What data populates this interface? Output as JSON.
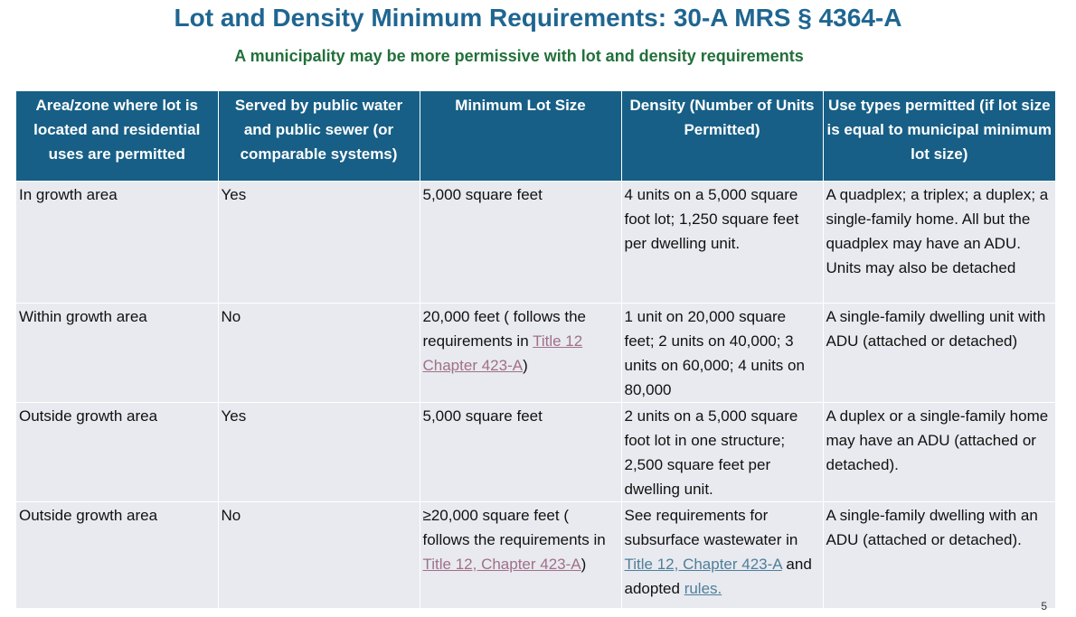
{
  "title": "Lot and Density Minimum Requirements: 30-A MRS § 4364-A",
  "subtitle": "A municipality may be more permissive with lot and density requirements",
  "table": {
    "headers": [
      "Area/zone where lot is located and residential uses are permitted",
      "Served by public water and public sewer (or comparable systems)",
      "Minimum Lot Size",
      "Density (Number of Units Permitted)",
      "Use types permitted (if lot size is equal to municipal minimum lot size)"
    ],
    "rows": [
      {
        "area": "In growth area",
        "served": "Yes",
        "lot": "5,000 square  feet",
        "density": "4 units on a 5,000 square foot lot; 1,250 square feet per dwelling unit.",
        "use": "A quadplex; a triplex; a duplex; a single-family home. All but the quadplex may have an ADU. Units may also be detached"
      },
      {
        "area": "Within growth area",
        "served": "No",
        "lot_pre": "20,000  feet ( follows the requirements in ",
        "lot_link": "Title 12 Chapter 423-A",
        "lot_post": ")",
        "density": "1 unit on 20,000 square feet; 2 units on 40,000; 3 units on 60,000; 4 units on 80,000",
        "use": "A single-family dwelling unit with ADU (attached or detached)"
      },
      {
        "area": "Outside growth area",
        "served": "Yes",
        "lot": "5,000 square feet",
        "density": "2 units on a 5,000 square foot lot in one structure; 2,500 square feet per dwelling unit.",
        "use": "A duplex or a single-family home may have an ADU (attached or detached)."
      },
      {
        "area": "Outside growth area",
        "served": "No",
        "lot_pre": "≥20,000 square feet ( follows the requirements in ",
        "lot_link": "Title 12, Chapter 423-A",
        "lot_post": ")",
        "density_pre": "See requirements for subsurface wastewater in ",
        "density_link": "Title 12, Chapter 423-A",
        "density_mid": " and adopted ",
        "density_link2": "rules.",
        "use": "A single-family dwelling with an ADU (attached or detached)."
      }
    ]
  },
  "page_number": "5",
  "colors": {
    "title": "#1f6691",
    "subtitle": "#22703a",
    "header_bg": "#175f86",
    "cell_bg": "#e8eaef"
  }
}
